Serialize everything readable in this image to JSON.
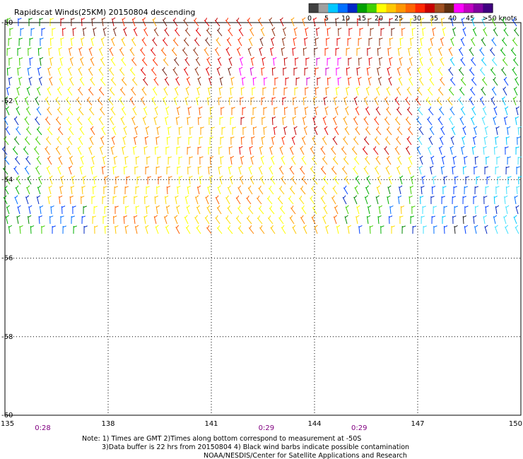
{
  "title": "Rapidscat Winds(25KM) 20150804 descending",
  "map": {
    "lon_range": [
      135,
      150
    ],
    "lat_range": [
      -60,
      -50
    ],
    "lon_ticks": [
      "135",
      "138",
      "141",
      "144",
      "147",
      "150"
    ],
    "lat_ticks": [
      "-50",
      "-52",
      "-54",
      "-56",
      "-58",
      "-60"
    ],
    "gridlines": "dotted",
    "swath_lat_bottom": -55.7,
    "times": [
      "0:28",
      "0:29",
      "0:29"
    ],
    "time_lons": [
      136.1,
      142.6,
      145.3
    ],
    "time_color": "#800080"
  },
  "legend": {
    "labels": [
      "0",
      "5",
      "10",
      "15",
      "20",
      "25",
      "30",
      "35",
      "40",
      "45",
      ">50 knots"
    ],
    "colors": [
      "#404040",
      "#a0a0a0",
      "#00c8ff",
      "#0070ff",
      "#0028c8",
      "#00a000",
      "#40d000",
      "#ffff00",
      "#ffc800",
      "#ff9600",
      "#ff6400",
      "#ff2800",
      "#c80000",
      "#a05020",
      "#603010",
      "#ff00ff",
      "#c000c0",
      "#8000a0",
      "#400080"
    ]
  },
  "notes": [
    "Note: 1) Times are GMT 2)Times along bottom correspond to measurement at -50S",
    "3)Data buffer is 22 hrs from 20150804 4) Black wind barbs indicate possible contamination",
    "NOAA/NESDIS/Center for Satellite Applications and Research"
  ],
  "colors": {
    "grid": "#000000",
    "text": "#000000"
  }
}
